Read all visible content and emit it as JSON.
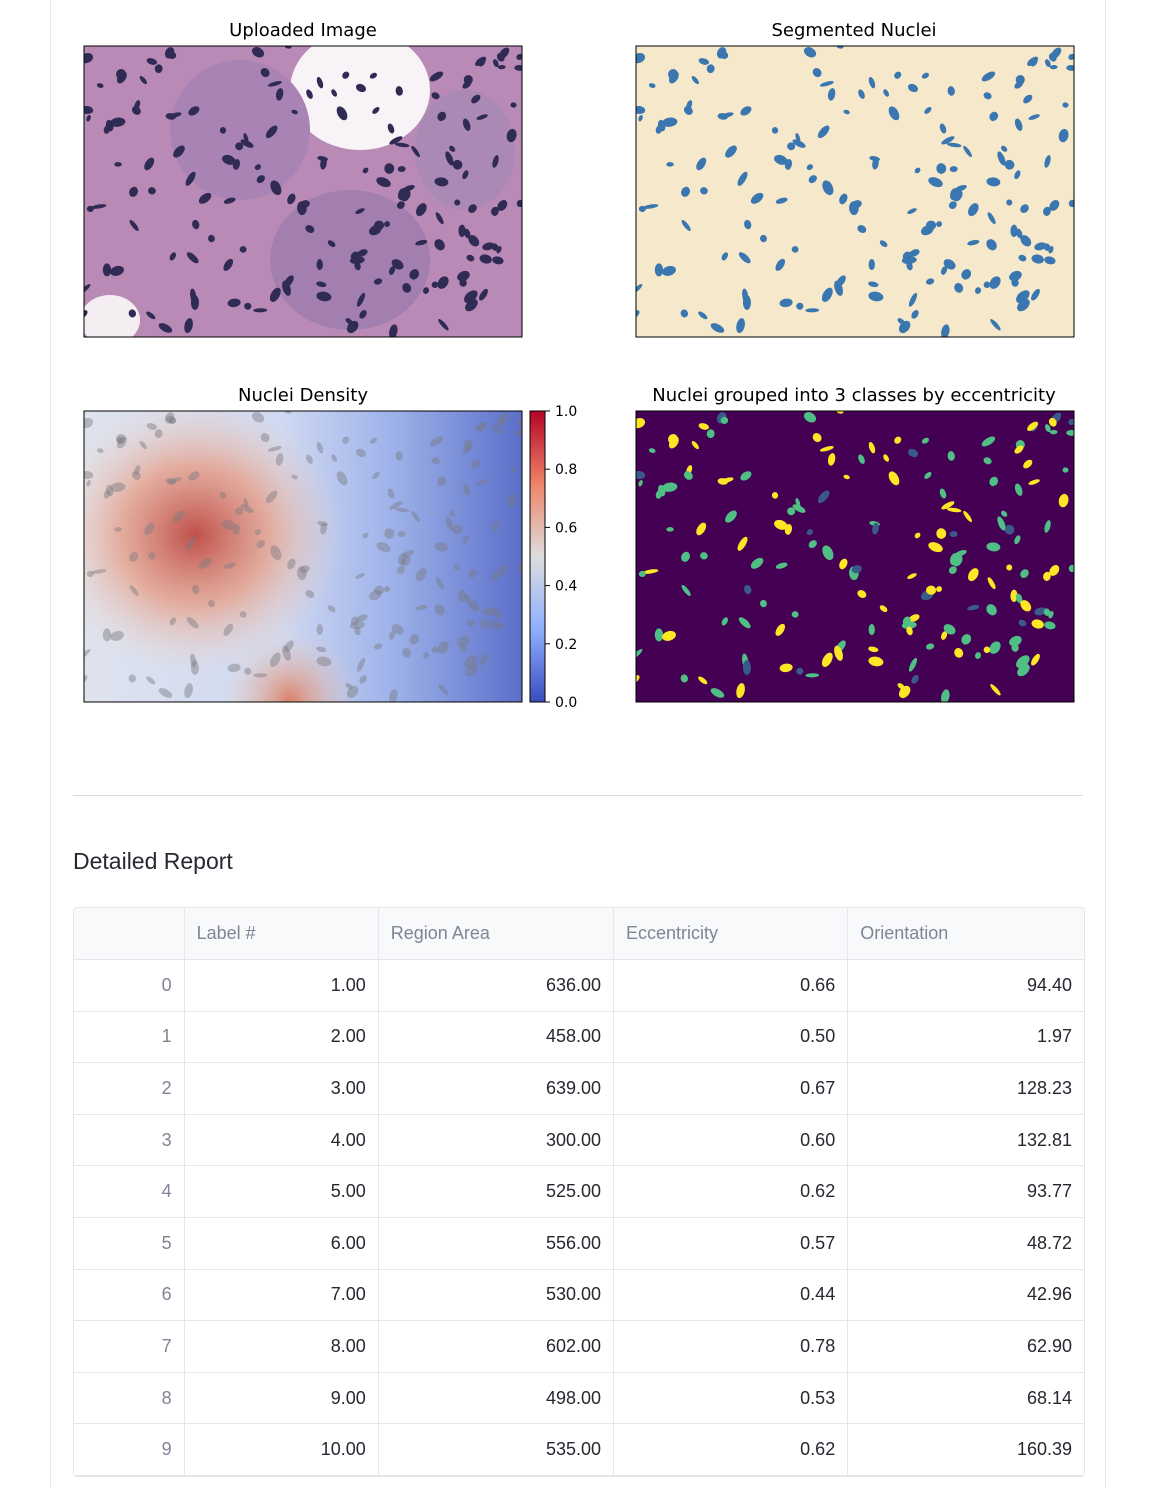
{
  "panels": [
    {
      "title": "Uploaded Image"
    },
    {
      "title": "Segmented Nuclei"
    },
    {
      "title": "Nuclei Density",
      "colorbar_ticks": [
        "1.0",
        "0.8",
        "0.6",
        "0.4",
        "0.2",
        "0.0"
      ]
    },
    {
      "title": "Nuclei grouped into 3 classes by eccentricity"
    }
  ],
  "report": {
    "heading": "Detailed Report",
    "table": {
      "columns": [
        "Label #",
        "Region Area",
        "Eccentricity",
        "Orientation"
      ],
      "rows": [
        {
          "index": "0",
          "cells": [
            "1.00",
            "636.00",
            "0.66",
            "94.40"
          ]
        },
        {
          "index": "1",
          "cells": [
            "2.00",
            "458.00",
            "0.50",
            "1.97"
          ]
        },
        {
          "index": "2",
          "cells": [
            "3.00",
            "639.00",
            "0.67",
            "128.23"
          ]
        },
        {
          "index": "3",
          "cells": [
            "4.00",
            "300.00",
            "0.60",
            "132.81"
          ]
        },
        {
          "index": "4",
          "cells": [
            "5.00",
            "525.00",
            "0.62",
            "93.77"
          ]
        },
        {
          "index": "5",
          "cells": [
            "6.00",
            "556.00",
            "0.57",
            "48.72"
          ]
        },
        {
          "index": "6",
          "cells": [
            "7.00",
            "530.00",
            "0.44",
            "42.96"
          ]
        },
        {
          "index": "7",
          "cells": [
            "8.00",
            "602.00",
            "0.78",
            "62.90"
          ]
        },
        {
          "index": "8",
          "cells": [
            "9.00",
            "498.00",
            "0.53",
            "68.14"
          ]
        },
        {
          "index": "9",
          "cells": [
            "10.00",
            "535.00",
            "0.62",
            "160.39"
          ]
        }
      ]
    }
  }
}
